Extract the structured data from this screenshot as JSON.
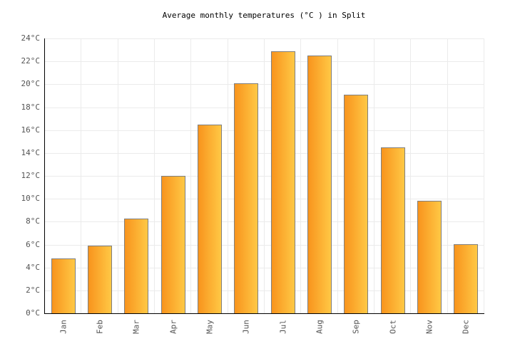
{
  "chart_data": {
    "type": "bar",
    "title": "Average monthly temperatures (°C ) in Split",
    "categories": [
      "Jan",
      "Feb",
      "Mar",
      "Apr",
      "May",
      "Jun",
      "Jul",
      "Aug",
      "Sep",
      "Oct",
      "Nov",
      "Dec"
    ],
    "values": [
      4.8,
      5.9,
      8.3,
      12.0,
      16.5,
      20.1,
      22.9,
      22.5,
      19.1,
      14.5,
      9.8,
      6.0
    ],
    "xlabel": "",
    "ylabel": "",
    "ylim": [
      0,
      24
    ],
    "ytick_step": 2,
    "ytick_suffix": "°C",
    "grid": true,
    "legend_position": "none",
    "colors": {
      "bar_gradient_left": "#f8941d",
      "bar_gradient_right": "#ffc845",
      "bar_border": "#7f7f7f",
      "grid_line": "#ebebeb",
      "axis_line": "#000000",
      "tick_label": "#545454",
      "title": "#000000",
      "background": "#ffffff"
    }
  }
}
